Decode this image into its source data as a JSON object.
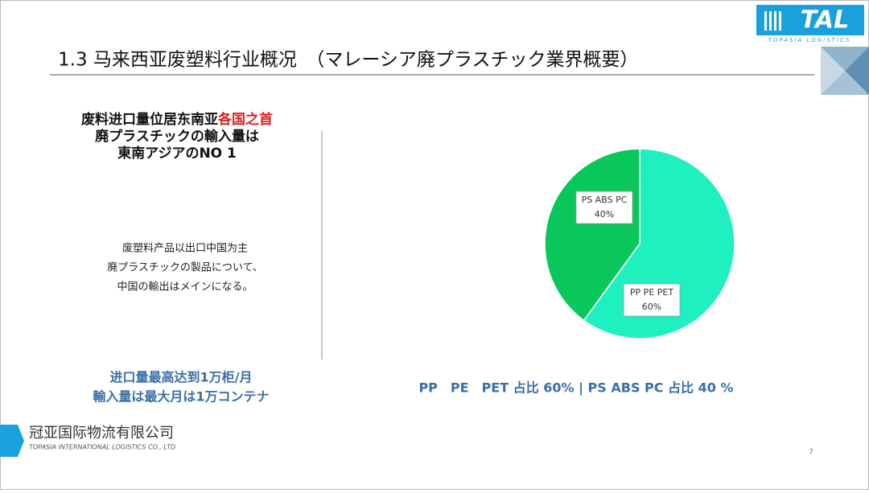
{
  "header": {
    "title": "1.3 马来西亚废塑料行业概况　（マレーシア廃プラスチック業界概要）",
    "logo": "TAL",
    "logo_sub": "TOPASIA LOGISTICS"
  },
  "left": {
    "heading": [
      "废料进口量位居东南亚",
      "各国之首",
      "廃プラスチックの輸入量は",
      "東南アジアのNO 1"
    ],
    "body": [
      "废塑料产品以出口中国为主",
      "廃プラスチックの製品について、",
      "中国の輸出はメインになる。"
    ],
    "highlight": [
      "进口量最高达到1万柜/月",
      "輸入量は最大月は1万コンテナ"
    ]
  },
  "chart_data": {
    "type": "pie",
    "categories": [
      "PP PE PET",
      "PS ABS PC"
    ],
    "values": [
      60,
      40
    ],
    "value_labels": [
      "60%",
      "40%"
    ],
    "colors": [
      "#1ff0c0",
      "#0ac75c"
    ],
    "caption": "PP　PE　PET 占比 60% | PS ABS PC 占比 40 %"
  },
  "footer": {
    "company": "冠亚国际物流有限公司",
    "company_en": "TOPASIA INTERNATIONAL LOGISTICS CO., LTD",
    "page": "7"
  }
}
